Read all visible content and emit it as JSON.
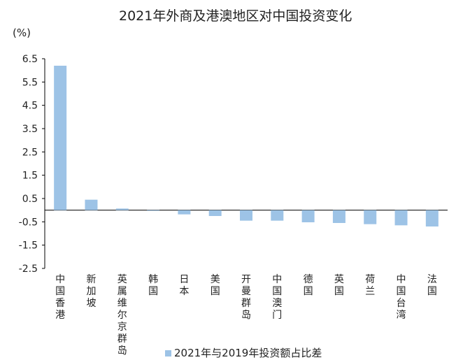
{
  "chart_data": {
    "type": "bar",
    "title": "2021年外商及港澳地区对中国投资变化",
    "ylabel": "(%)",
    "categories": [
      "中国香港",
      "新加坡",
      "英属维尔京群岛",
      "韩国",
      "日本",
      "美国",
      "开曼群岛",
      "中国澳门",
      "德国",
      "英国",
      "荷兰",
      "中国台湾",
      "法国"
    ],
    "series": [
      {
        "name": "2021年与2019年投资额占比差",
        "values": [
          6.2,
          0.45,
          0.07,
          -0.03,
          -0.18,
          -0.25,
          -0.45,
          -0.45,
          -0.52,
          -0.55,
          -0.6,
          -0.65,
          -0.7
        ]
      }
    ],
    "yticks": [
      "6.5",
      "5.5",
      "4.5",
      "3.5",
      "2.5",
      "1.5",
      "0.5",
      "-0.5",
      "-1.5",
      "-2.5"
    ],
    "ylim": [
      -2.5,
      6.5
    ],
    "grid": false,
    "legend_position": "bottom",
    "bar_color": "#9dc3e6"
  }
}
